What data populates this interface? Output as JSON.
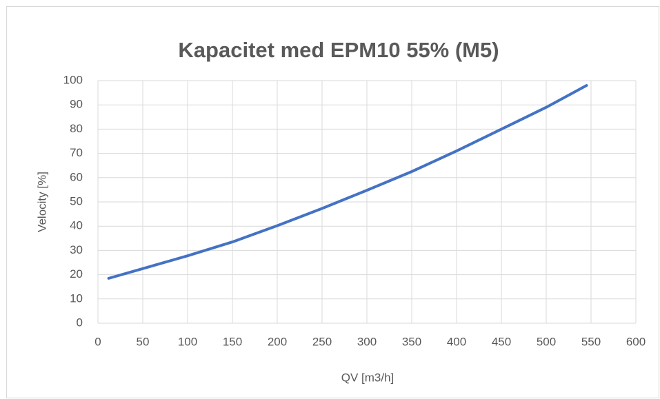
{
  "chart_data": {
    "type": "line",
    "title": "Kapacitet med EPM10 55%  (M5)",
    "x_label": "QV [m3/h]",
    "y_label": "Velocity [%]",
    "x": [
      12,
      50,
      100,
      150,
      200,
      250,
      300,
      350,
      400,
      450,
      500,
      545
    ],
    "series": [
      {
        "name": "Velocity",
        "color": "#4472c4",
        "values": [
          18.5,
          22.5,
          27.8,
          33.5,
          40.2,
          47.3,
          54.8,
          62.5,
          71,
          80,
          89,
          98
        ]
      }
    ],
    "xlim": [
      0,
      600
    ],
    "xticks": [
      0,
      50,
      100,
      150,
      200,
      250,
      300,
      350,
      400,
      450,
      500,
      550,
      600
    ],
    "ylim": [
      0,
      100
    ],
    "yticks": [
      0,
      10,
      20,
      30,
      40,
      50,
      60,
      70,
      80,
      90,
      100
    ],
    "grid": true
  }
}
